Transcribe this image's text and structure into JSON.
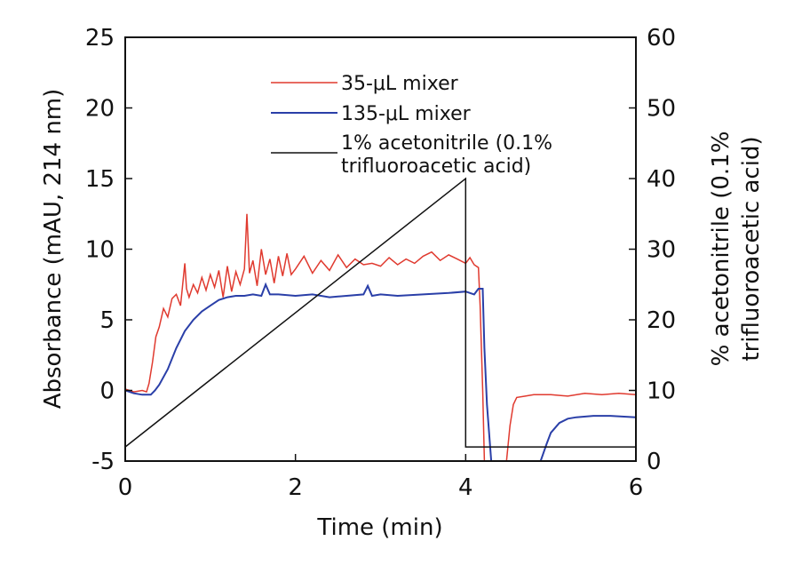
{
  "chart_data": {
    "type": "line",
    "title": "",
    "xlabel": "Time (min)",
    "ylabel": "Absorbance (mAU, 214 nm)",
    "y2label_line1": "% acetonitrile (0.1%",
    "y2label_line2": "trifluoroacetic acid)",
    "xlim": [
      0,
      6
    ],
    "ylim": [
      -5,
      25
    ],
    "y2lim": [
      0,
      60
    ],
    "xticks": [
      0,
      2,
      4,
      6
    ],
    "yticks": [
      -5,
      0,
      5,
      10,
      15,
      20,
      25
    ],
    "y2ticks": [
      0,
      10,
      20,
      30,
      40,
      50,
      60
    ],
    "grid": false,
    "legend_placement": "top-center",
    "series": [
      {
        "name": "35-μL mixer",
        "color": "#e03a2f",
        "axis": "left",
        "x": [
          0,
          0.1,
          0.2,
          0.25,
          0.28,
          0.32,
          0.36,
          0.4,
          0.45,
          0.5,
          0.55,
          0.6,
          0.65,
          0.7,
          0.72,
          0.75,
          0.8,
          0.85,
          0.9,
          0.95,
          1.0,
          1.05,
          1.1,
          1.15,
          1.2,
          1.25,
          1.3,
          1.35,
          1.4,
          1.43,
          1.46,
          1.5,
          1.55,
          1.6,
          1.65,
          1.7,
          1.75,
          1.8,
          1.85,
          1.9,
          1.95,
          2.0,
          2.1,
          2.2,
          2.3,
          2.4,
          2.5,
          2.6,
          2.7,
          2.8,
          2.9,
          3.0,
          3.1,
          3.2,
          3.3,
          3.4,
          3.5,
          3.6,
          3.7,
          3.8,
          3.9,
          4.0,
          4.05,
          4.1,
          4.15,
          4.17,
          4.2,
          4.22
        ],
        "y": [
          0.1,
          -0.1,
          0.0,
          -0.1,
          0.5,
          2.0,
          3.8,
          4.5,
          5.8,
          5.2,
          6.5,
          6.8,
          6.0,
          9.0,
          7.2,
          6.6,
          7.5,
          6.9,
          8.0,
          7.1,
          8.2,
          7.3,
          8.5,
          6.6,
          8.8,
          7.0,
          8.4,
          7.5,
          8.6,
          12.5,
          8.3,
          9.2,
          7.4,
          10.0,
          8.2,
          9.3,
          7.6,
          9.5,
          8.1,
          9.7,
          8.2,
          8.6,
          9.5,
          8.3,
          9.2,
          8.5,
          9.6,
          8.7,
          9.3,
          8.9,
          9.0,
          8.8,
          9.4,
          8.9,
          9.3,
          9.0,
          9.5,
          9.8,
          9.2,
          9.6,
          9.3,
          9.0,
          9.4,
          8.9,
          8.7,
          6.0,
          0,
          -5
        ],
        "x_return": [
          4.48,
          4.52,
          4.56,
          4.6,
          4.7,
          4.8,
          5.0,
          5.2,
          5.4,
          5.6,
          5.8,
          6.0
        ],
        "y_return": [
          -5,
          -2.5,
          -1.0,
          -0.5,
          -0.4,
          -0.3,
          -0.3,
          -0.4,
          -0.2,
          -0.3,
          -0.2,
          -0.3
        ]
      },
      {
        "name": "135-μL mixer",
        "color": "#2a3fa8",
        "axis": "left",
        "x": [
          0,
          0.1,
          0.2,
          0.3,
          0.35,
          0.4,
          0.5,
          0.6,
          0.7,
          0.8,
          0.9,
          1.0,
          1.1,
          1.2,
          1.3,
          1.4,
          1.5,
          1.6,
          1.65,
          1.7,
          1.8,
          2.0,
          2.2,
          2.4,
          2.6,
          2.8,
          2.85,
          2.9,
          3.0,
          3.2,
          3.5,
          3.8,
          4.0,
          4.1,
          4.15,
          4.2,
          4.22,
          4.25,
          4.3
        ],
        "y": [
          0.0,
          -0.2,
          -0.3,
          -0.3,
          0.0,
          0.4,
          1.5,
          3.0,
          4.2,
          5.0,
          5.6,
          6.0,
          6.4,
          6.6,
          6.7,
          6.7,
          6.8,
          6.7,
          7.5,
          6.8,
          6.8,
          6.7,
          6.8,
          6.6,
          6.7,
          6.8,
          7.4,
          6.7,
          6.8,
          6.7,
          6.8,
          6.9,
          7.0,
          6.8,
          7.2,
          7.2,
          3.0,
          -1.0,
          -5
        ],
        "x_return": [
          4.88,
          4.95,
          5.0,
          5.1,
          5.2,
          5.3,
          5.5,
          5.7,
          6.0
        ],
        "y_return": [
          -5,
          -3.8,
          -3.0,
          -2.3,
          -2.0,
          -1.9,
          -1.8,
          -1.8,
          -1.9
        ]
      },
      {
        "name": "1% acetonitrile (0.1% trifluoroacetic acid)",
        "legend_line1": "1% acetonitrile (0.1%",
        "legend_line2": "trifluoroacetic acid)",
        "color": "#111111",
        "axis": "right",
        "x": [
          0,
          4,
          4,
          6
        ],
        "y": [
          2,
          40,
          2,
          2
        ]
      }
    ]
  }
}
